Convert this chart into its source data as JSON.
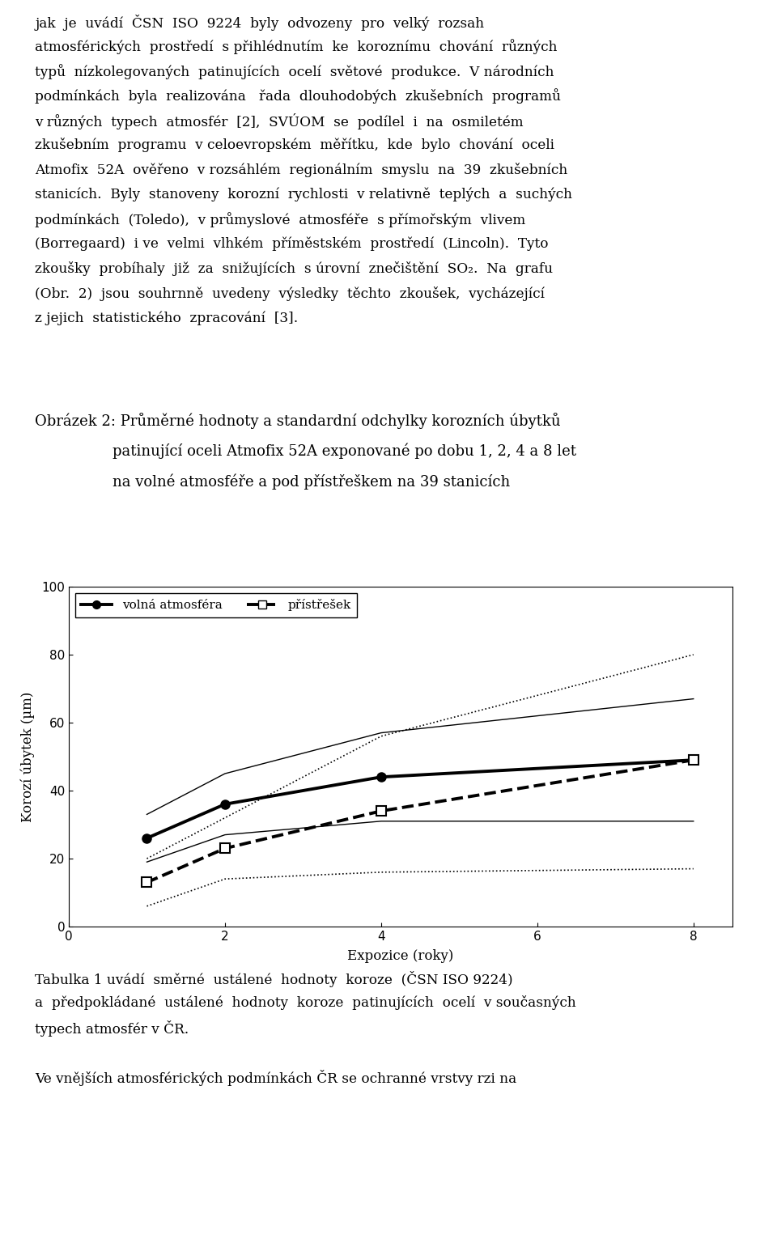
{
  "caption_title": "Obrázek 2: Průměrné hodnoty a standardní odchylky korozínch úbytků",
  "caption_line2": "patinující oceli Atmofix 52A exponované po dobu 1, 2, 4 a 8 let",
  "caption_line3": "na volné atm osféře a pod přístřeškem na 39 stanice",
  "xlabel": "Expozice (roky)",
  "ylabel": "Korozí úbytek (µm)",
  "xlim": [
    0,
    8.5
  ],
  "ylim": [
    0,
    100
  ],
  "xticks": [
    0,
    2,
    4,
    6,
    8
  ],
  "yticks": [
    0,
    20,
    40,
    60,
    80,
    100
  ],
  "legend_labels": [
    "volná atm osféra",
    "přístřešek"
  ],
  "x_data": [
    1,
    2,
    4,
    8
  ],
  "volna_mean": [
    26,
    36,
    44,
    49
  ],
  "volna_upper": [
    33,
    45,
    57,
    67
  ],
  "volna_lower": [
    19,
    27,
    31,
    31
  ],
  "pristresek_mean": [
    13,
    23,
    34,
    49
  ],
  "pristresek_upper": [
    20,
    32,
    56,
    80
  ],
  "pristresek_lower": [
    6,
    14,
    16,
    17
  ],
  "bg_color": "#ffffff",
  "text_color": "#000000"
}
